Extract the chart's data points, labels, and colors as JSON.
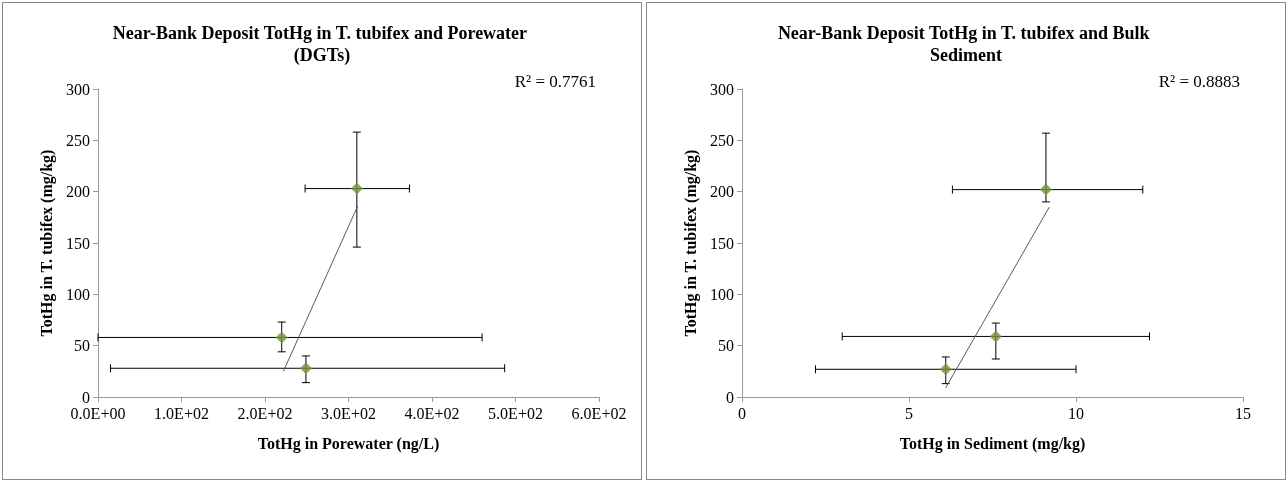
{
  "chart_data": [
    {
      "type": "scatter",
      "title": "Near-Bank Deposit TotHg in T. tubifex and Porewater (DGTs)",
      "xlabel": "TotHg in Porewater (ng/L)",
      "ylabel": "TotHg in T. tubifex (mg/kg)",
      "grid": false,
      "xlim": [
        0,
        600
      ],
      "xticks": [
        {
          "value": 0,
          "label": "0.0E+00"
        },
        {
          "value": 100,
          "label": "1.0E+02"
        },
        {
          "value": 200,
          "label": "2.0E+02"
        },
        {
          "value": 300,
          "label": "3.0E+02"
        },
        {
          "value": 400,
          "label": "4.0E+02"
        },
        {
          "value": 500,
          "label": "5.0E+02"
        },
        {
          "value": 600,
          "label": "6.0E+02"
        }
      ],
      "ylim": [
        0,
        300
      ],
      "yticks": [
        0,
        50,
        100,
        150,
        200,
        250,
        300
      ],
      "annotations": [
        "R² = 0.7761"
      ],
      "series": [
        {
          "type": "scatter",
          "marker": "diamond",
          "color": "#77933c",
          "x": [
            220,
            249,
            310
          ],
          "values": [
            58,
            28,
            203
          ],
          "errors": [
            [
              44,
              73
            ],
            [
              14,
              40
            ],
            [
              146,
              258
            ]
          ],
          "xerrors": [
            [
              0,
              460
            ],
            [
              15,
              487
            ],
            [
              248,
              373
            ]
          ]
        },
        {
          "type": "line",
          "marker": "none",
          "color": "#595959",
          "x": [
            222,
            311
          ],
          "values": [
            25,
            186
          ]
        }
      ]
    },
    {
      "type": "scatter",
      "title": "Near-Bank Deposit TotHg in T. tubifex and Bulk Sediment",
      "xlabel": "TotHg in Sediment (mg/kg)",
      "ylabel": "TotHg in T. tubifex (mg/kg)",
      "grid": false,
      "xlim": [
        0,
        15
      ],
      "xticks": [
        0,
        5,
        10,
        15
      ],
      "ylim": [
        0,
        300
      ],
      "yticks": [
        0,
        50,
        100,
        150,
        200,
        250,
        300
      ],
      "annotations": [
        "R² = 0.8883"
      ],
      "series": [
        {
          "type": "scatter",
          "marker": "diamond",
          "color": "#77933c",
          "x": [
            6.1,
            7.6,
            9.1
          ],
          "values": [
            27,
            59,
            202
          ],
          "errors": [
            [
              13,
              39
            ],
            [
              37,
              72
            ],
            [
              190,
              257
            ]
          ],
          "xerrors": [
            [
              2.2,
              10.0
            ],
            [
              3.0,
              12.2
            ],
            [
              6.3,
              12.0
            ]
          ]
        },
        {
          "type": "line",
          "marker": "none",
          "color": "#595959",
          "x": [
            6.1,
            9.2
          ],
          "values": [
            9,
            185
          ]
        }
      ]
    }
  ]
}
